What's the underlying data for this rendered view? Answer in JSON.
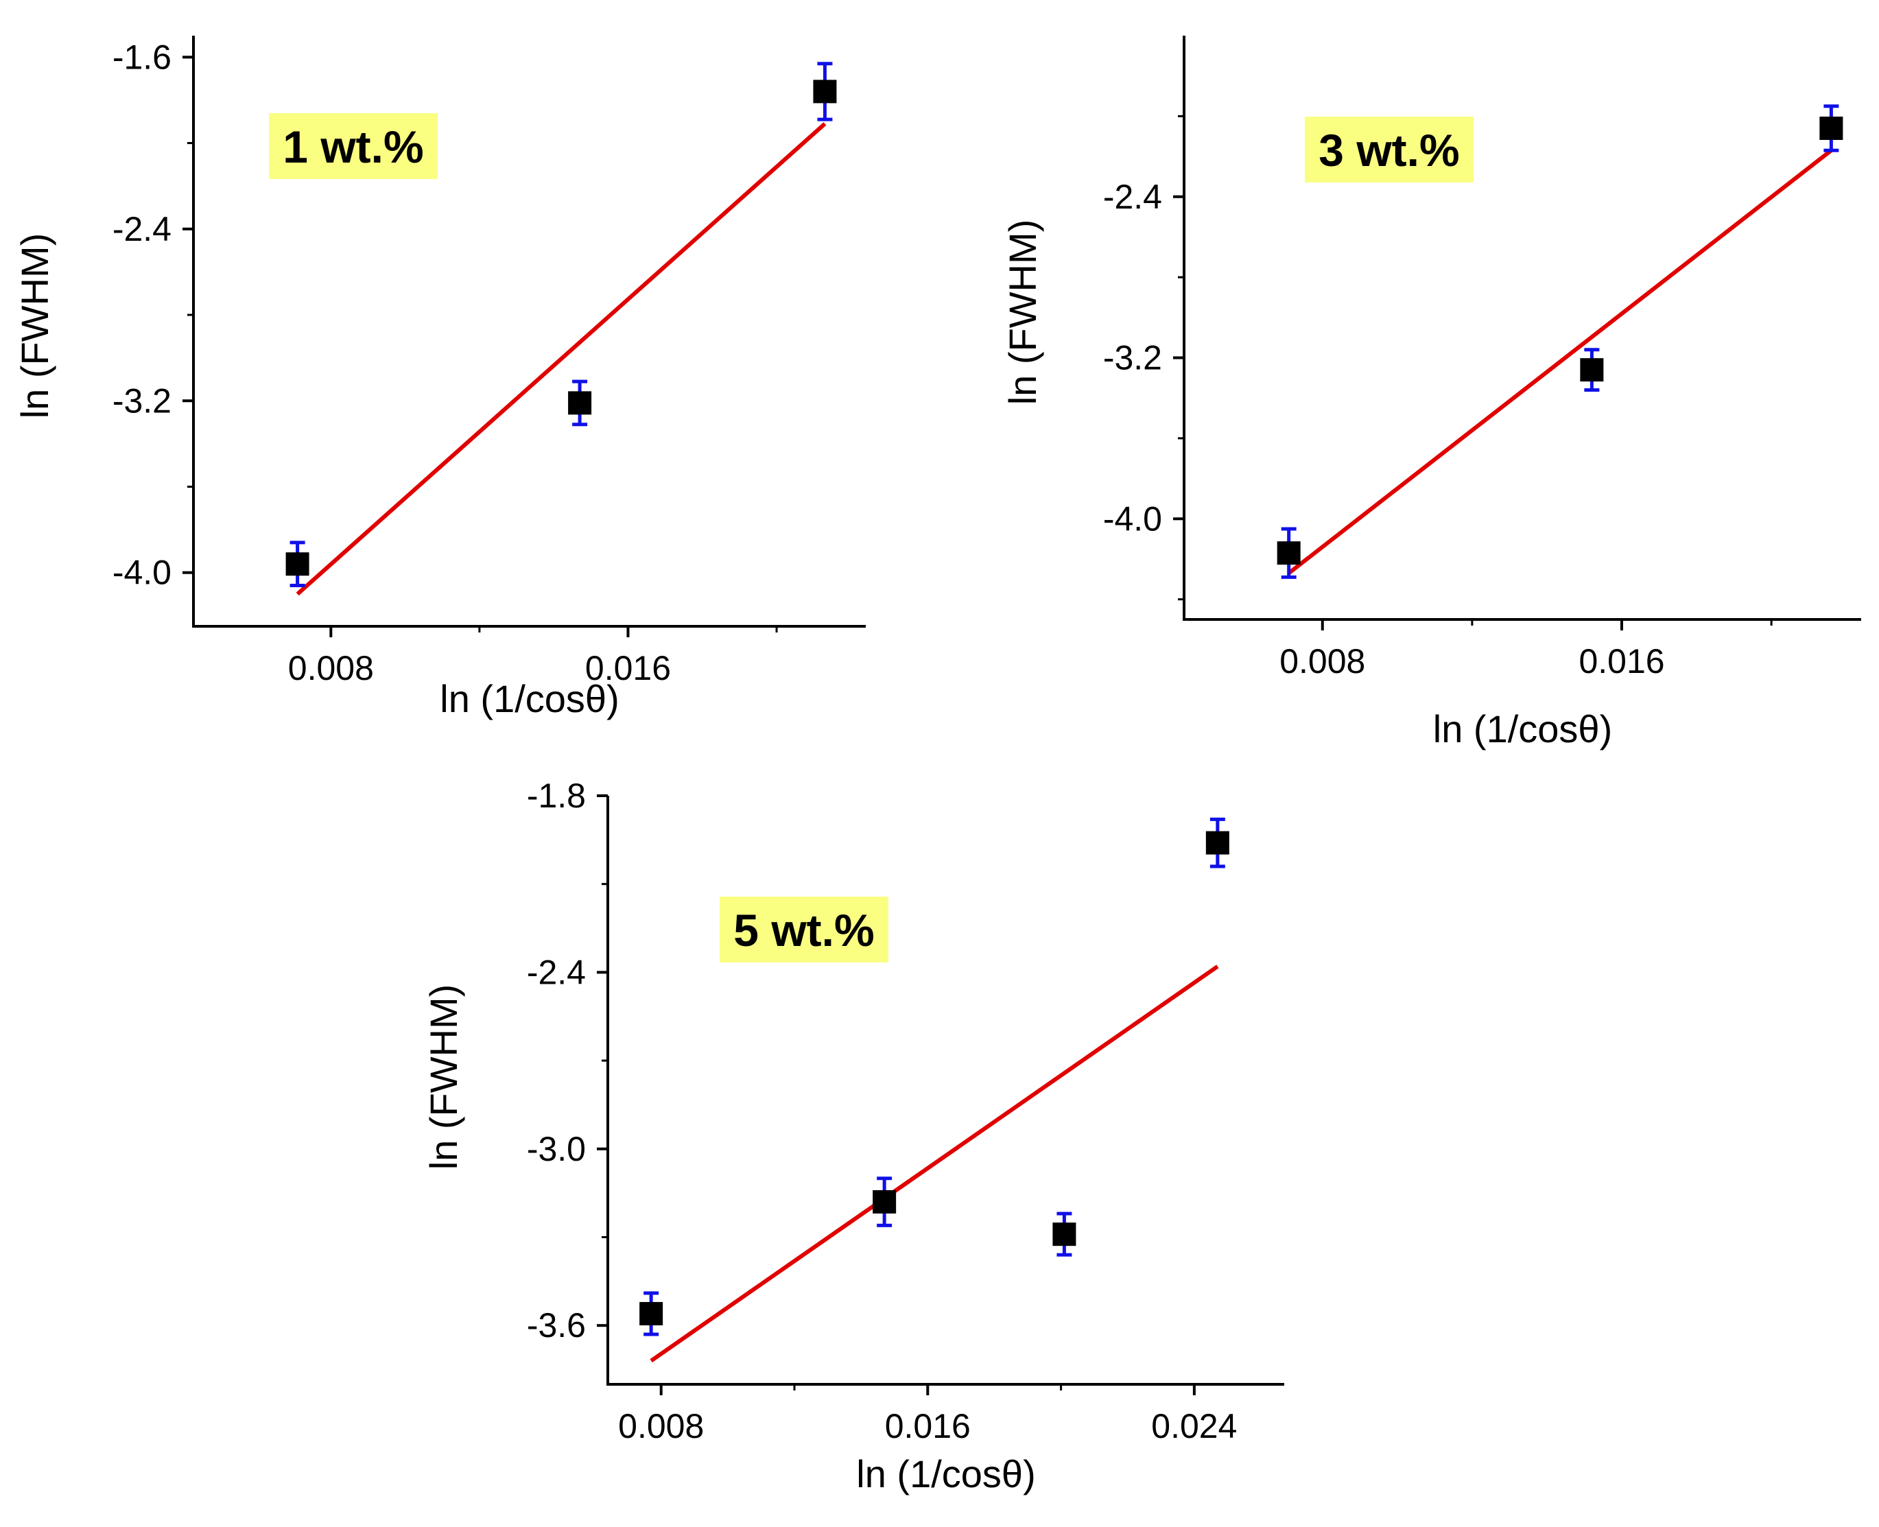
{
  "colors": {
    "marker": "#000000",
    "error_bar": "#1010e8",
    "fit_line": "#e00000",
    "badge_bg": "#faff82",
    "axis": "#000000"
  },
  "chart_data": [
    {
      "type": "scatter",
      "label": "1 wt.%",
      "xlabel": "ln (1/cosθ)",
      "ylabel": "ln (FWHM)",
      "xlim": [
        0.0043,
        0.0224
      ],
      "ylim": [
        -4.25,
        -1.5
      ],
      "x_ticks": [
        0.008,
        0.016
      ],
      "x_tick_labels": [
        "0.008",
        "0.016"
      ],
      "x_minor_ticks": [
        0.012,
        0.02
      ],
      "y_ticks": [
        -4.0,
        -3.2,
        -2.4,
        -1.6
      ],
      "y_tick_labels": [
        "-4.0",
        "-3.2",
        "-2.4",
        "-1.6"
      ],
      "y_minor_ticks": [
        -3.6,
        -2.8,
        -2.0
      ],
      "points": [
        {
          "x": 0.0071,
          "y": -3.96,
          "err": 0.1
        },
        {
          "x": 0.0147,
          "y": -3.21,
          "err": 0.1
        },
        {
          "x": 0.0213,
          "y": -1.76,
          "err": 0.13
        }
      ],
      "fit": {
        "x": [
          0.0071,
          0.0213
        ],
        "y": [
          -4.1,
          -1.91
        ]
      }
    },
    {
      "type": "scatter",
      "label": "3 wt.%",
      "xlabel": "ln (1/cosθ)",
      "ylabel": "ln (FWHM)",
      "xlim": [
        0.0043,
        0.0224
      ],
      "ylim": [
        -4.5,
        -1.6
      ],
      "x_ticks": [
        0.008,
        0.016
      ],
      "x_tick_labels": [
        "0.008",
        "0.016"
      ],
      "x_minor_ticks": [
        0.012,
        0.02
      ],
      "y_ticks": [
        -4.0,
        -3.2,
        -2.4
      ],
      "y_tick_labels": [
        "-4.0",
        "-3.2",
        "-2.4"
      ],
      "y_minor_ticks": [
        -4.4,
        -3.6,
        -2.8,
        -2.0
      ],
      "points": [
        {
          "x": 0.0071,
          "y": -4.17,
          "err": 0.12
        },
        {
          "x": 0.0152,
          "y": -3.26,
          "err": 0.1
        },
        {
          "x": 0.0216,
          "y": -2.06,
          "err": 0.11
        }
      ],
      "fit": {
        "x": [
          0.0071,
          0.0216
        ],
        "y": [
          -4.27,
          -2.17
        ]
      }
    },
    {
      "type": "scatter",
      "label": "5 wt.%",
      "xlabel": "ln (1/cosθ)",
      "ylabel": "ln (FWHM)",
      "xlim": [
        0.0064,
        0.0267
      ],
      "ylim": [
        -3.8,
        -1.8
      ],
      "x_ticks": [
        0.008,
        0.016,
        0.024
      ],
      "x_tick_labels": [
        "0.008",
        "0.016",
        "0.024"
      ],
      "x_minor_ticks": [
        0.012,
        0.02
      ],
      "y_ticks": [
        -3.6,
        -3.0,
        -2.4,
        -1.8
      ],
      "y_tick_labels": [
        "-3.6",
        "-3.0",
        "-2.4",
        "-1.8"
      ],
      "y_minor_ticks": [
        -3.3,
        -2.7,
        -2.1
      ],
      "points": [
        {
          "x": 0.0077,
          "y": -3.56,
          "err": 0.07
        },
        {
          "x": 0.0147,
          "y": -3.18,
          "err": 0.08
        },
        {
          "x": 0.0201,
          "y": -3.29,
          "err": 0.07
        },
        {
          "x": 0.0247,
          "y": -1.96,
          "err": 0.08
        }
      ],
      "fit": {
        "x": [
          0.0077,
          0.0247
        ],
        "y": [
          -3.72,
          -2.38
        ]
      }
    }
  ]
}
